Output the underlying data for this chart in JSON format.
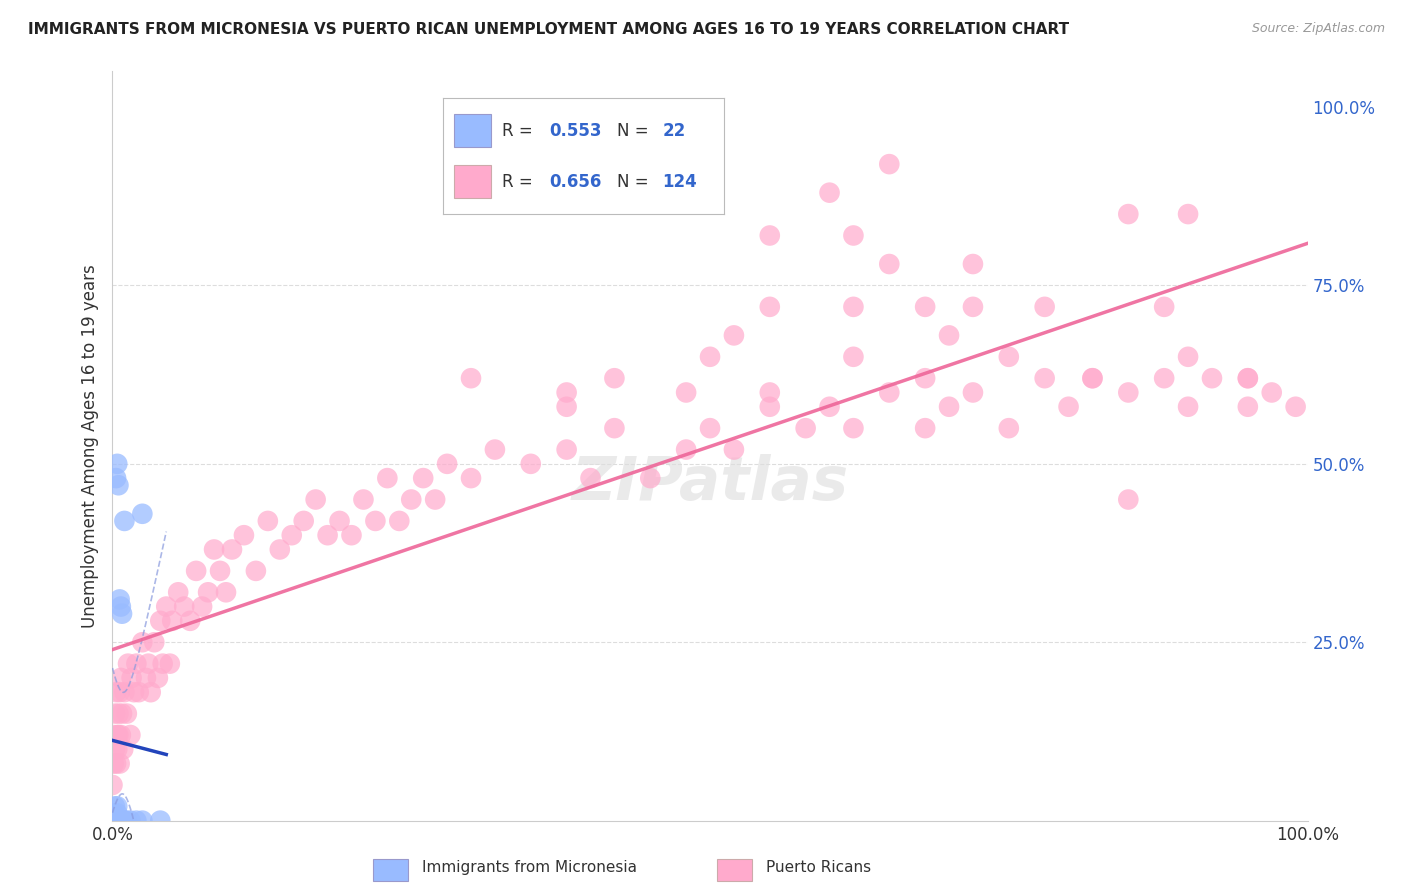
{
  "title": "IMMIGRANTS FROM MICRONESIA VS PUERTO RICAN UNEMPLOYMENT AMONG AGES 16 TO 19 YEARS CORRELATION CHART",
  "source": "Source: ZipAtlas.com",
  "ylabel": "Unemployment Among Ages 16 to 19 years",
  "xlim": [
    0.0,
    1.0
  ],
  "ylim": [
    0.0,
    1.05
  ],
  "x_tick_labels": [
    "0.0%",
    "100.0%"
  ],
  "y_ticks": [
    0.0,
    0.25,
    0.5,
    0.75,
    1.0
  ],
  "y_tick_labels": [
    "",
    "25.0%",
    "50.0%",
    "75.0%",
    "100.0%"
  ],
  "legend_blue_label": "Immigrants from Micronesia",
  "legend_pink_label": "Puerto Ricans",
  "R_blue": "0.553",
  "N_blue": "22",
  "R_pink": "0.656",
  "N_pink": "124",
  "blue_dot_color": "#99BBFF",
  "pink_dot_color": "#FFAACC",
  "blue_line_color": "#2244BB",
  "pink_line_color": "#EE6699",
  "blue_ci_color": "#8899DD",
  "label_color": "#3366CC",
  "watermark": "ZIPatlas",
  "background_color": "#FFFFFF",
  "grid_color": "#DDDDDD",
  "blue_x": [
    0.001,
    0.001,
    0.002,
    0.002,
    0.002,
    0.003,
    0.003,
    0.004,
    0.004,
    0.005,
    0.005,
    0.006,
    0.007,
    0.007,
    0.008,
    0.009,
    0.01,
    0.012,
    0.015,
    0.02,
    0.025,
    0.04
  ],
  "blue_y": [
    0.0,
    0.01,
    0.0,
    0.0,
    0.02,
    0.0,
    0.0,
    0.02,
    0.01,
    0.0,
    0.0,
    0.0,
    0.0,
    0.0,
    0.0,
    0.0,
    0.0,
    0.0,
    0.0,
    0.0,
    0.0,
    0.0
  ],
  "blue_outlier_x": [
    0.003,
    0.004,
    0.005,
    0.006,
    0.007,
    0.008,
    0.01,
    0.025
  ],
  "blue_outlier_y": [
    0.48,
    0.5,
    0.47,
    0.31,
    0.3,
    0.29,
    0.42,
    0.43
  ],
  "pink_x_low": [
    0.0,
    0.001,
    0.001,
    0.002,
    0.002,
    0.003,
    0.003,
    0.004,
    0.004,
    0.005,
    0.005,
    0.006,
    0.006,
    0.007,
    0.007,
    0.008,
    0.009,
    0.01,
    0.012,
    0.013,
    0.015,
    0.016,
    0.018,
    0.02,
    0.022,
    0.025,
    0.028,
    0.03,
    0.032,
    0.035,
    0.038,
    0.04,
    0.042,
    0.045,
    0.048,
    0.05,
    0.055,
    0.06,
    0.065,
    0.07,
    0.075,
    0.08,
    0.085,
    0.09,
    0.095,
    0.1,
    0.11,
    0.12,
    0.13,
    0.14,
    0.15,
    0.16,
    0.17,
    0.18,
    0.19,
    0.2,
    0.21,
    0.22,
    0.23,
    0.24,
    0.25,
    0.26,
    0.27,
    0.28,
    0.3,
    0.32,
    0.35,
    0.38,
    0.4,
    0.42
  ],
  "pink_y_low": [
    0.05,
    0.08,
    0.12,
    0.1,
    0.15,
    0.08,
    0.18,
    0.12,
    0.1,
    0.15,
    0.12,
    0.18,
    0.08,
    0.12,
    0.2,
    0.15,
    0.1,
    0.18,
    0.15,
    0.22,
    0.12,
    0.2,
    0.18,
    0.22,
    0.18,
    0.25,
    0.2,
    0.22,
    0.18,
    0.25,
    0.2,
    0.28,
    0.22,
    0.3,
    0.22,
    0.28,
    0.32,
    0.3,
    0.28,
    0.35,
    0.3,
    0.32,
    0.38,
    0.35,
    0.32,
    0.38,
    0.4,
    0.35,
    0.42,
    0.38,
    0.4,
    0.42,
    0.45,
    0.4,
    0.42,
    0.4,
    0.45,
    0.42,
    0.48,
    0.42,
    0.45,
    0.48,
    0.45,
    0.5,
    0.48,
    0.52,
    0.5,
    0.52,
    0.48,
    0.55
  ],
  "pink_x_high": [
    0.45,
    0.48,
    0.5,
    0.52,
    0.55,
    0.58,
    0.6,
    0.62,
    0.65,
    0.68,
    0.7,
    0.72,
    0.75,
    0.78,
    0.8,
    0.82,
    0.85,
    0.88,
    0.9,
    0.92,
    0.95,
    0.97,
    0.99,
    0.38,
    0.42,
    0.48,
    0.55,
    0.62,
    0.68,
    0.75,
    0.82,
    0.9,
    0.95,
    0.62
  ],
  "pink_y_high": [
    0.48,
    0.52,
    0.55,
    0.52,
    0.58,
    0.55,
    0.58,
    0.55,
    0.6,
    0.55,
    0.58,
    0.6,
    0.55,
    0.62,
    0.58,
    0.62,
    0.6,
    0.62,
    0.58,
    0.62,
    0.58,
    0.6,
    0.58,
    0.58,
    0.62,
    0.6,
    0.6,
    0.65,
    0.62,
    0.65,
    0.62,
    0.65,
    0.62,
    0.82
  ],
  "pink_outlier_x": [
    0.3,
    0.38,
    0.5,
    0.52,
    0.55,
    0.6,
    0.65,
    0.72,
    0.85,
    0.88,
    0.9,
    0.95,
    0.55,
    0.65,
    0.68,
    0.72,
    0.62,
    0.7,
    0.78,
    0.85
  ],
  "pink_outlier_y": [
    0.62,
    0.6,
    0.65,
    0.68,
    0.82,
    0.88,
    0.92,
    0.72,
    0.85,
    0.72,
    0.85,
    0.62,
    0.72,
    0.78,
    0.72,
    0.78,
    0.72,
    0.68,
    0.72,
    0.45
  ]
}
